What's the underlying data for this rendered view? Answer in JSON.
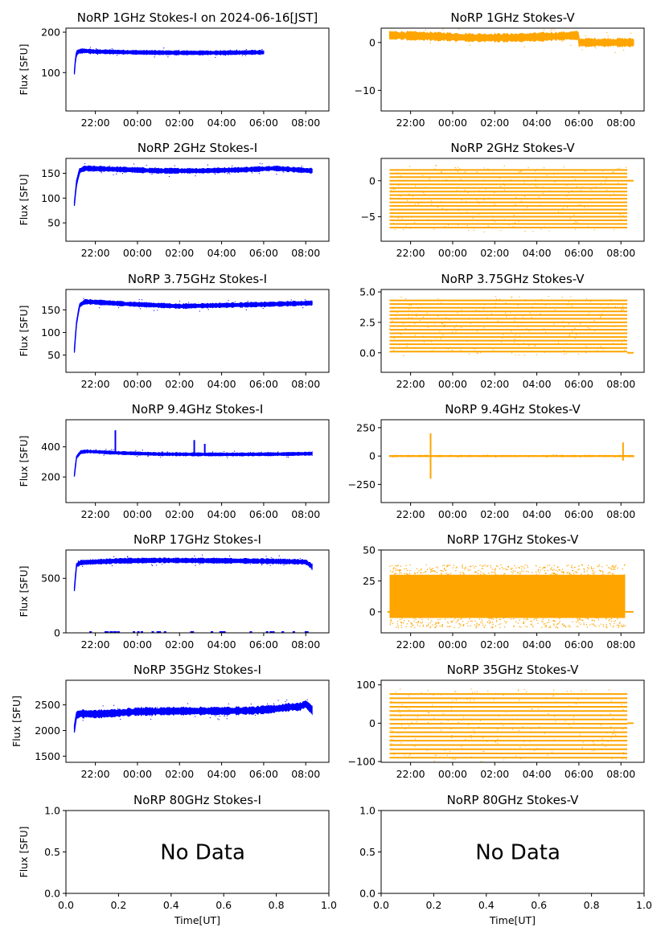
{
  "figure_caption": "NoRP 1GHz Stokes-I on 2024-06-16[JST]",
  "colors": {
    "stokes_i": "#0000ff",
    "stokes_v": "#ffa500",
    "axis": "#000000"
  },
  "chart_data": [
    {
      "type": "scatter",
      "title": "NoRP 1GHz Stokes-I on 2024-06-16[JST]",
      "ylabel": "Flux [SFU]",
      "xlabel": "",
      "x_ticks": [
        "22:00",
        "00:00",
        "02:00",
        "04:00",
        "06:00",
        "08:00"
      ],
      "xlim_hours": [
        20.6,
        33.1
      ],
      "ylim": [
        5,
        210
      ],
      "y_ticks": [
        100,
        200
      ],
      "y_tick_labels": [
        "100",
        "200"
      ],
      "series": [
        {
          "name": "Stokes-I",
          "x_hours": [
            21.0,
            21.05,
            21.1,
            21.2,
            21.4,
            22,
            24,
            26,
            28,
            29.5,
            30.0
          ],
          "values": [
            100,
            130,
            148,
            152,
            154,
            152,
            150,
            149,
            149,
            150,
            150
          ],
          "spread": 4
        }
      ],
      "no_data": false
    },
    {
      "type": "scatter",
      "title": "NoRP 1GHz Stokes-V",
      "ylabel": "",
      "xlabel": "",
      "x_ticks": [
        "22:00",
        "00:00",
        "02:00",
        "04:00",
        "06:00",
        "08:00"
      ],
      "xlim_hours": [
        20.6,
        33.1
      ],
      "ylim": [
        -14.3,
        3
      ],
      "y_ticks": [
        -10,
        0
      ],
      "y_tick_labels": [
        "−10",
        "0"
      ],
      "series": [
        {
          "name": "Stokes-V",
          "x_hours": [
            21.0,
            23,
            25,
            27,
            29,
            30.0,
            30.01,
            32.6
          ],
          "values": [
            1.5,
            1.3,
            1.0,
            1.0,
            1.3,
            1.5,
            0.0,
            0.0
          ],
          "spread": 0.7
        }
      ],
      "no_data": false
    },
    {
      "type": "scatter",
      "title": "NoRP 2GHz Stokes-I",
      "ylabel": "Flux [SFU]",
      "xlabel": "",
      "x_ticks": [
        "22:00",
        "00:00",
        "02:00",
        "04:00",
        "06:00",
        "08:00"
      ],
      "xlim_hours": [
        20.6,
        33.1
      ],
      "ylim": [
        13,
        180
      ],
      "y_ticks": [
        50,
        100,
        150
      ],
      "y_tick_labels": [
        "50",
        "100",
        "150"
      ],
      "series": [
        {
          "name": "Stokes-I",
          "x_hours": [
            21.0,
            21.1,
            21.25,
            21.5,
            23,
            25,
            27,
            29,
            30.5,
            32.3
          ],
          "values": [
            88,
            130,
            155,
            160,
            158,
            155,
            155,
            157,
            160,
            155
          ],
          "spread": 4
        }
      ],
      "no_data": false
    },
    {
      "type": "scatter",
      "title": "NoRP 2GHz Stokes-V",
      "ylabel": "",
      "xlabel": "",
      "x_ticks": [
        "22:00",
        "00:00",
        "02:00",
        "04:00",
        "06:00",
        "08:00"
      ],
      "xlim_hours": [
        20.6,
        33.1
      ],
      "ylim": [
        -8.4,
        3.1
      ],
      "y_ticks": [
        -5,
        0
      ],
      "y_tick_labels": [
        "−5",
        "0"
      ],
      "band_levels": [
        -6.5,
        1.5
      ],
      "band_count": 17,
      "no_data": false
    },
    {
      "type": "scatter",
      "title": "NoRP 3.75GHz Stokes-I",
      "ylabel": "Flux [SFU]",
      "xlabel": "",
      "x_ticks": [
        "22:00",
        "00:00",
        "02:00",
        "04:00",
        "06:00",
        "08:00"
      ],
      "xlim_hours": [
        20.6,
        33.1
      ],
      "ylim": [
        12,
        195
      ],
      "y_ticks": [
        50,
        100,
        150
      ],
      "y_tick_labels": [
        "50",
        "100",
        "150"
      ],
      "series": [
        {
          "name": "Stokes-I",
          "x_hours": [
            21.0,
            21.1,
            21.25,
            21.5,
            22,
            23.5,
            24,
            26,
            28,
            30,
            32.3
          ],
          "values": [
            60,
            120,
            160,
            168,
            167,
            163,
            162,
            158,
            160,
            162,
            165
          ],
          "spread": 4
        }
      ],
      "no_data": false
    },
    {
      "type": "scatter",
      "title": "NoRP 3.75GHz Stokes-V",
      "ylabel": "",
      "xlabel": "",
      "x_ticks": [
        "22:00",
        "00:00",
        "02:00",
        "04:00",
        "06:00",
        "08:00"
      ],
      "xlim_hours": [
        20.6,
        33.1
      ],
      "ylim": [
        -1.6,
        5.2
      ],
      "y_ticks": [
        0.0,
        2.5,
        5.0
      ],
      "y_tick_labels": [
        "0.0",
        "2.5",
        "5.0"
      ],
      "band_levels": [
        0.1,
        4.3
      ],
      "band_count": 15,
      "no_data": false
    },
    {
      "type": "scatter",
      "title": "NoRP 9.4GHz Stokes-I",
      "ylabel": "Flux [SFU]",
      "xlabel": "",
      "x_ticks": [
        "22:00",
        "00:00",
        "02:00",
        "04:00",
        "06:00",
        "08:00"
      ],
      "xlim_hours": [
        20.6,
        33.1
      ],
      "ylim": [
        30,
        580
      ],
      "y_ticks": [
        200,
        400
      ],
      "y_tick_labels": [
        "200",
        "400"
      ],
      "series": [
        {
          "name": "Stokes-I",
          "x_hours": [
            21.0,
            21.1,
            21.3,
            21.6,
            23,
            25,
            27,
            29,
            31,
            32.3
          ],
          "values": [
            210,
            330,
            365,
            370,
            360,
            352,
            350,
            350,
            352,
            355
          ],
          "spread": 8
        }
      ],
      "spikes": [
        {
          "x_hours": 22.95,
          "top": 510
        },
        {
          "x_hours": 26.7,
          "top": 445
        },
        {
          "x_hours": 27.2,
          "top": 420
        }
      ],
      "no_data": false
    },
    {
      "type": "scatter",
      "title": "NoRP 9.4GHz Stokes-V",
      "ylabel": "",
      "xlabel": "",
      "x_ticks": [
        "22:00",
        "00:00",
        "02:00",
        "04:00",
        "06:00",
        "08:00"
      ],
      "xlim_hours": [
        20.6,
        33.1
      ],
      "ylim": [
        -410,
        320
      ],
      "y_ticks": [
        -250,
        0,
        250
      ],
      "y_tick_labels": [
        "−250",
        "0",
        "250"
      ],
      "series": [
        {
          "name": "Stokes-V",
          "x_hours": [
            21.0,
            32.6
          ],
          "values": [
            0,
            0
          ],
          "spread": 4
        }
      ],
      "spikes": [
        {
          "x_hours": 22.95,
          "top": 200,
          "bottom": -200
        },
        {
          "x_hours": 32.1,
          "top": 120,
          "bottom": -40
        }
      ],
      "no_data": false
    },
    {
      "type": "scatter",
      "title": "NoRP 17GHz Stokes-I",
      "ylabel": "Flux [SFU]",
      "xlabel": "",
      "x_ticks": [
        "22:00",
        "00:00",
        "02:00",
        "04:00",
        "06:00",
        "08:00"
      ],
      "xlim_hours": [
        20.6,
        33.1
      ],
      "ylim": [
        0,
        760
      ],
      "y_ticks": [
        0,
        500
      ],
      "y_tick_labels": [
        "0",
        "500"
      ],
      "series": [
        {
          "name": "Stokes-I",
          "x_hours": [
            21.0,
            21.1,
            21.3,
            23,
            25,
            27,
            29,
            31,
            32.0,
            32.3
          ],
          "values": [
            400,
            620,
            645,
            660,
            665,
            663,
            660,
            655,
            650,
            610
          ],
          "spread": 18
        }
      ],
      "zero_line": true,
      "no_data": false
    },
    {
      "type": "scatter",
      "title": "NoRP 17GHz Stokes-V",
      "ylabel": "",
      "xlabel": "",
      "x_ticks": [
        "22:00",
        "00:00",
        "02:00",
        "04:00",
        "06:00",
        "08:00"
      ],
      "xlim_hours": [
        20.6,
        33.1
      ],
      "ylim": [
        -17,
        50
      ],
      "y_ticks": [
        0,
        25,
        50
      ],
      "y_tick_labels": [
        "0",
        "25",
        "50"
      ],
      "filled_range": [
        -5,
        30
      ],
      "zero_line": true,
      "no_data": false
    },
    {
      "type": "scatter",
      "title": "NoRP 35GHz Stokes-I",
      "ylabel": "Flux [SFU]",
      "xlabel": "",
      "x_ticks": [
        "22:00",
        "00:00",
        "02:00",
        "04:00",
        "06:00",
        "08:00"
      ],
      "xlim_hours": [
        20.6,
        33.1
      ],
      "ylim": [
        1380,
        2980
      ],
      "y_ticks": [
        1500,
        2000,
        2500
      ],
      "y_tick_labels": [
        "1500",
        "2000",
        "2500"
      ],
      "series": [
        {
          "name": "Stokes-I",
          "x_hours": [
            21.0,
            21.1,
            21.3,
            22,
            23,
            24,
            26,
            28,
            29.5,
            30.5,
            31.3,
            31.7,
            32.0,
            32.3
          ],
          "values": [
            2030,
            2300,
            2330,
            2320,
            2340,
            2370,
            2380,
            2380,
            2390,
            2420,
            2460,
            2460,
            2520,
            2400
          ],
          "spread": 60
        }
      ],
      "no_data": false
    },
    {
      "type": "scatter",
      "title": "NoRP 35GHz Stokes-V",
      "ylabel": "",
      "xlabel": "",
      "x_ticks": [
        "22:00",
        "00:00",
        "02:00",
        "04:00",
        "06:00",
        "08:00"
      ],
      "xlim_hours": [
        20.6,
        33.1
      ],
      "ylim": [
        -102,
        112
      ],
      "y_ticks": [
        -100,
        0,
        100
      ],
      "y_tick_labels": [
        "−100",
        "0",
        "100"
      ],
      "band_levels": [
        -90,
        76
      ],
      "band_count": 16,
      "no_data": false
    },
    {
      "type": "scatter",
      "title": "NoRP 80GHz Stokes-I",
      "ylabel": "Flux [SFU]",
      "xlabel": "Time[UT]",
      "x_ticks_numeric": [
        "0.0",
        "0.2",
        "0.4",
        "0.6",
        "0.8",
        "1.0"
      ],
      "xlim": [
        0,
        1
      ],
      "ylim": [
        0,
        1
      ],
      "y_ticks": [
        0.0,
        0.5,
        1.0
      ],
      "y_tick_labels": [
        "0.0",
        "0.5",
        "1.0"
      ],
      "no_data": true,
      "no_data_text": "No Data"
    },
    {
      "type": "scatter",
      "title": "NoRP 80GHz Stokes-V",
      "ylabel": "",
      "xlabel": "Time[UT]",
      "x_ticks_numeric": [
        "0.0",
        "0.2",
        "0.4",
        "0.6",
        "0.8",
        "1.0"
      ],
      "xlim": [
        0,
        1
      ],
      "ylim": [
        0,
        1
      ],
      "y_ticks": [
        0.0,
        0.5,
        1.0
      ],
      "y_tick_labels": [
        "0.0",
        "0.5",
        "1.0"
      ],
      "no_data": true,
      "no_data_text": "No Data"
    }
  ]
}
